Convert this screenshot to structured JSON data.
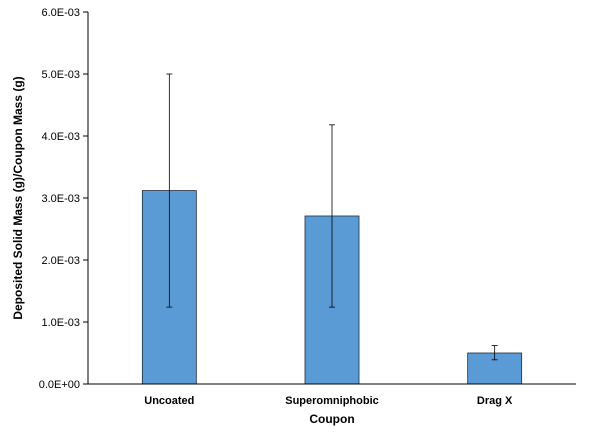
{
  "chart_data": {
    "type": "bar",
    "title": "",
    "xlabel": "Coupon",
    "ylabel": "Deposited Solid Mass (g)/Coupon Mass (g)",
    "categories": [
      "Uncoated",
      "Superomniphobic",
      "Drag X"
    ],
    "values": [
      0.00312,
      0.00271,
      0.0005
    ],
    "error_low": [
      0.00124,
      0.00124,
      0.00039
    ],
    "error_high": [
      0.005,
      0.00418,
      0.00062
    ],
    "ylim": [
      0,
      0.006
    ],
    "yticks": [
      0,
      0.001,
      0.002,
      0.003,
      0.004,
      0.005,
      0.006
    ],
    "ytick_labels": [
      "0.0E+00",
      "1.0E-03",
      "2.0E-03",
      "3.0E-03",
      "4.0E-03",
      "5.0E-03",
      "6.0E-03"
    ],
    "grid": false,
    "legend": "none",
    "bar_color": "#5b9bd5",
    "bar_edge_color": "#1f2d3d"
  }
}
